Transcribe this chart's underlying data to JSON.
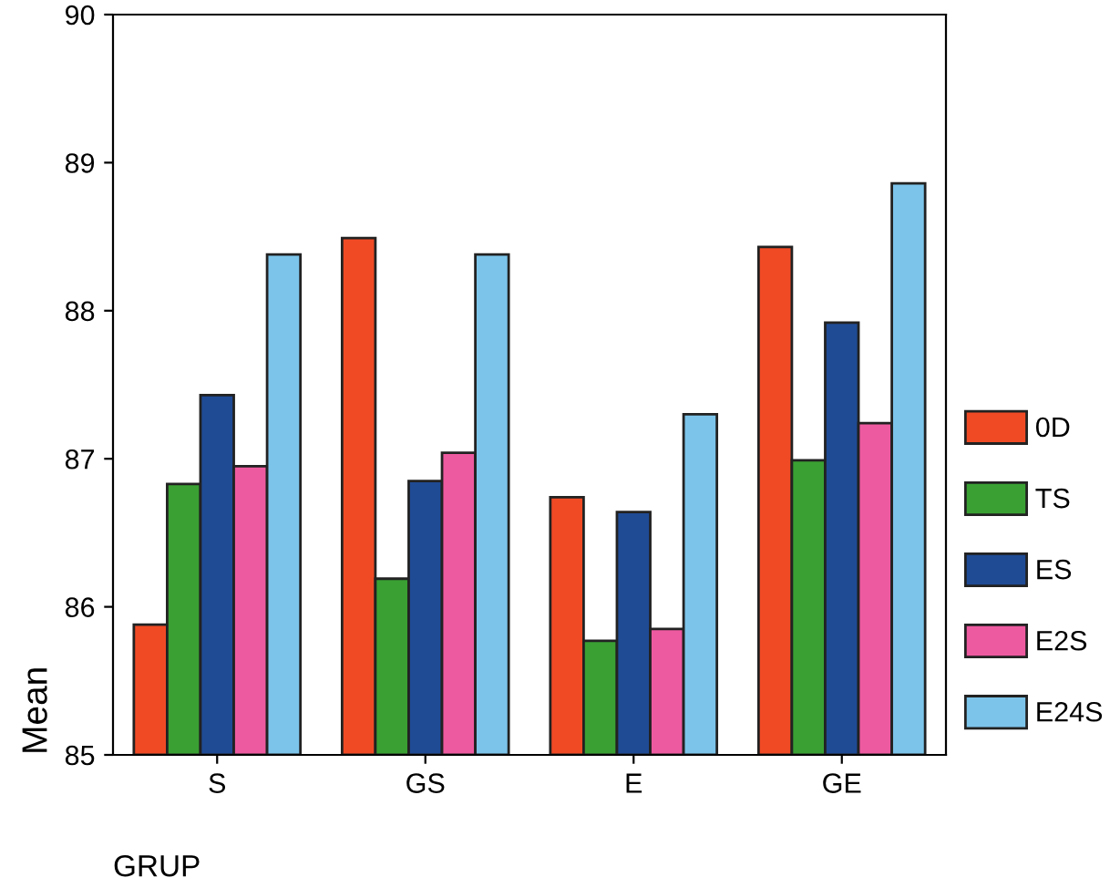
{
  "chart_data": {
    "type": "bar",
    "xlabel": "GRUP",
    "ylabel": "Mean",
    "categories": [
      "S",
      "GS",
      "E",
      "GE"
    ],
    "series": [
      {
        "name": "0D",
        "color": "#f04a25",
        "values": [
          85.88,
          88.49,
          86.74,
          88.43
        ]
      },
      {
        "name": "TS",
        "color": "#3aa033",
        "values": [
          86.83,
          86.19,
          85.77,
          86.99
        ]
      },
      {
        "name": "ES",
        "color": "#1f4b95",
        "values": [
          87.43,
          86.85,
          86.64,
          87.92
        ]
      },
      {
        "name": "E2S",
        "color": "#ee5aa0",
        "values": [
          86.95,
          87.04,
          85.85,
          87.24
        ]
      },
      {
        "name": "E24S",
        "color": "#7cc4ea",
        "values": [
          88.38,
          88.38,
          87.3,
          88.86
        ]
      }
    ],
    "ylim": [
      85,
      90
    ],
    "yticks": [
      85,
      86,
      87,
      88,
      89,
      90
    ],
    "grid": false,
    "legend": "right"
  }
}
